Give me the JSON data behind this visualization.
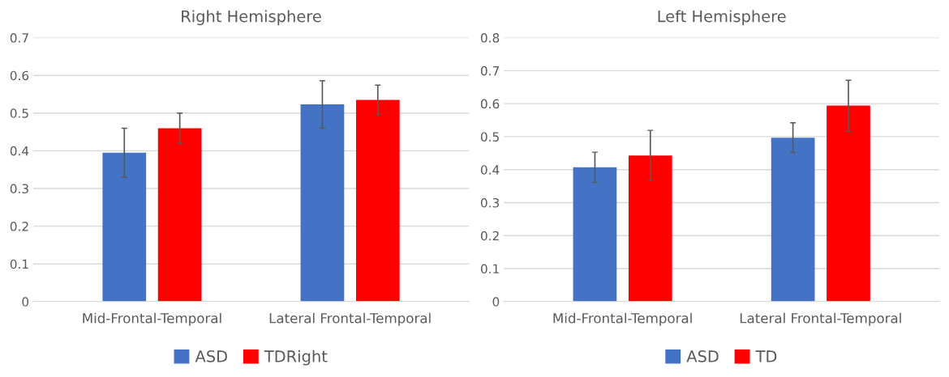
{
  "chart_data": [
    {
      "type": "bar",
      "title": "Right Hemisphere",
      "categories": [
        "Mid-Frontal-Temporal",
        "Lateral Frontal-Temporal"
      ],
      "series": [
        {
          "name": "ASD",
          "color": "#4472c4",
          "values": [
            0.395,
            0.523
          ],
          "errors": [
            0.065,
            0.063
          ]
        },
        {
          "name": "TDRight",
          "color": "#ff0000",
          "values": [
            0.46,
            0.535
          ],
          "errors": [
            0.04,
            0.039
          ]
        }
      ],
      "ylim": [
        0,
        0.7
      ],
      "yticks": [
        {
          "value": 0,
          "label": "0"
        },
        0.1,
        0.2,
        0.3,
        0.4,
        0.5,
        0.6,
        0.7
      ],
      "grid": "y",
      "legend": "bottom"
    },
    {
      "type": "bar",
      "title": "Left Hemisphere",
      "categories": [
        "Mid-Frontal-Temporal",
        "Lateral Frontal-Temporal"
      ],
      "series": [
        {
          "name": "ASD",
          "color": "#4472c4",
          "values": [
            0.407,
            0.497
          ],
          "errors": [
            0.046,
            0.045
          ]
        },
        {
          "name": "TD",
          "color": "#ff0000",
          "values": [
            0.443,
            0.594
          ],
          "errors": [
            0.076,
            0.077
          ]
        }
      ],
      "ylim": [
        0,
        0.8
      ],
      "yticks": [
        {
          "value": 0,
          "label": "0"
        },
        0.1,
        0.2,
        0.3,
        0.4,
        0.5,
        0.6,
        0.7,
        0.8
      ],
      "grid": "y",
      "legend": "bottom"
    }
  ]
}
